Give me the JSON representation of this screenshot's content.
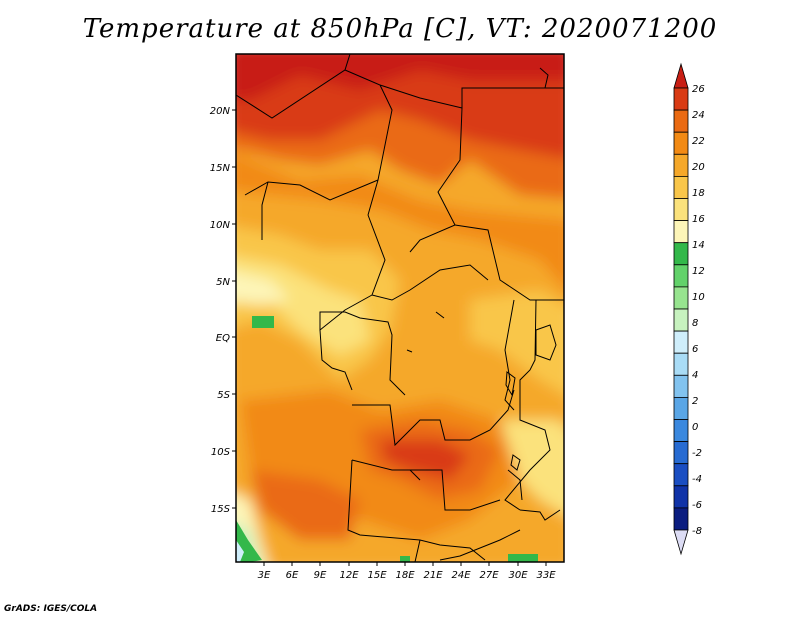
{
  "title": "Temperature at 850hPa [C], VT: 2020071200",
  "footer": "GrADS: IGES/COLA",
  "map": {
    "region": "Central and Southern Africa",
    "lon_range": [
      0,
      35
    ],
    "lat_range": [
      -20,
      25
    ],
    "lon_ticks": [
      "3E",
      "6E",
      "9E",
      "12E",
      "15E",
      "18E",
      "21E",
      "24E",
      "27E",
      "30E",
      "33E"
    ],
    "lat_ticks": [
      "20N",
      "15N",
      "10N",
      "5N",
      "EQ",
      "5S",
      "10S",
      "15S"
    ]
  },
  "colorbar": {
    "labels": [
      "26",
      "24",
      "22",
      "20",
      "18",
      "16",
      "14",
      "12",
      "10",
      "8",
      "6",
      "4",
      "2",
      "0",
      "-2",
      "-4",
      "-6",
      "-8"
    ],
    "colors": [
      "#c81e14",
      "#d93b14",
      "#ea6a12",
      "#f28a14",
      "#f5a82a",
      "#f9c64a",
      "#fbe27c",
      "#fdf5b8",
      "#33b84a",
      "#62d26a",
      "#97e48f",
      "#c7f2bf",
      "#cfeefb",
      "#a9dcf6",
      "#82c3ef",
      "#5aa6e6",
      "#3a88de",
      "#276bd2",
      "#1a4ec2",
      "#1033a8",
      "#0b1d80",
      "#dcdcf4"
    ]
  }
}
